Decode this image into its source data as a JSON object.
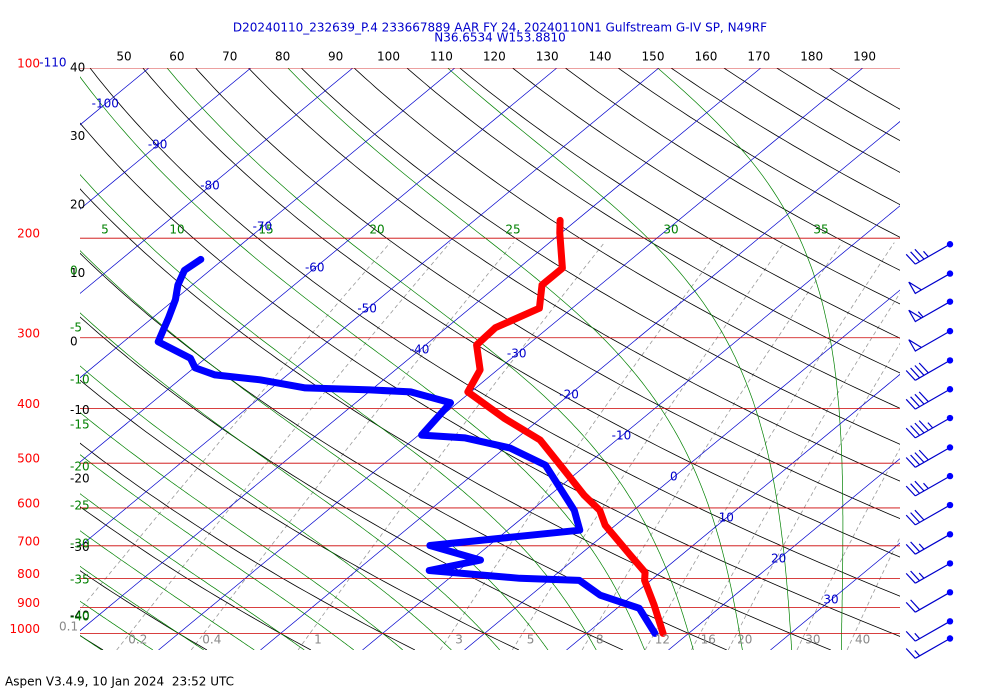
{
  "chart_data": {
    "type": "skewt",
    "title": "D20240110_232639_P.4 233667889 AAR FY 24, 20240110N1 Gulfstream G-IV SP, N49RF",
    "subtitle": "N36.6534 W153.8810",
    "footer": "Aspen V3.4.9, 10 Jan 2024  23:52 UTC",
    "ylim": [
      1070,
      100
    ],
    "yticks": [
      100,
      200,
      300,
      400,
      500,
      600,
      700,
      800,
      900,
      1000
    ],
    "xlim": [
      -37.7,
      42.7
    ],
    "xticks": [
      -110,
      -100,
      -90,
      -80,
      -70,
      -60,
      -50,
      -40,
      -30,
      -20,
      -10,
      0,
      10,
      20,
      30
    ],
    "dry_adiabats": [
      -40,
      -30,
      -20,
      -10,
      0,
      10,
      20,
      30,
      40,
      50,
      60,
      70,
      80,
      90,
      100,
      110,
      120,
      130,
      140,
      150,
      160,
      170,
      180,
      190
    ],
    "moist_adiabats": [
      -40,
      -35,
      -30,
      -25,
      -20,
      -15,
      -10,
      -5,
      0,
      5,
      10,
      15,
      20,
      25,
      30,
      35
    ],
    "mixing_ratios": [
      0.1,
      0.2,
      0.4,
      1,
      3,
      5,
      8,
      12,
      16,
      20,
      30,
      40
    ],
    "series": [
      {
        "color": "#ff0000",
        "x": [
          1000,
          892,
          806,
          780,
          727,
          644,
          606,
          570,
          515,
          455,
          417,
          374,
          342,
          309,
          288,
          266,
          242,
          226,
          196,
          186
        ],
        "values": [
          17.5,
          13.3,
          9.4,
          8.5,
          5.0,
          -1.0,
          -3.3,
          -6.6,
          -11.5,
          -17.5,
          -23.5,
          -30.3,
          -31.7,
          -35.0,
          -35.2,
          -33.2,
          -35.7,
          -35.7,
          -40.1,
          -41.6
        ]
      },
      {
        "color": "#0000ff",
        "x": [
          1000,
          903,
          856,
          806,
          799,
          774,
          742,
          699,
          657,
          606,
          504,
          470,
          451,
          446,
          391,
          374,
          371,
          368,
          356,
          349,
          339,
          326,
          305,
          277,
          257,
          242,
          228,
          218
        ],
        "values": [
          16.7,
          12.2,
          6.8,
          3.0,
          -3.1,
          -12.9,
          -9.1,
          -15.8,
          -2.9,
          -5.8,
          -14.0,
          -19.5,
          -25.1,
          -29.7,
          -30.7,
          -35.9,
          -40.1,
          -46.7,
          -52.1,
          -57.1,
          -59.9,
          -61.5,
          -66.6,
          -68.4,
          -69.9,
          -71.4,
          -72.5,
          -72.2
        ]
      }
    ],
    "wind": {
      "pressure": [
        205,
        231,
        259,
        292,
        329,
        370,
        416,
        469,
        527,
        593,
        668,
        752,
        846,
        952,
        1021
      ],
      "speed": [
        35,
        50,
        55,
        50,
        40,
        40,
        45,
        40,
        35,
        30,
        25,
        25,
        20,
        15,
        15
      ]
    }
  }
}
